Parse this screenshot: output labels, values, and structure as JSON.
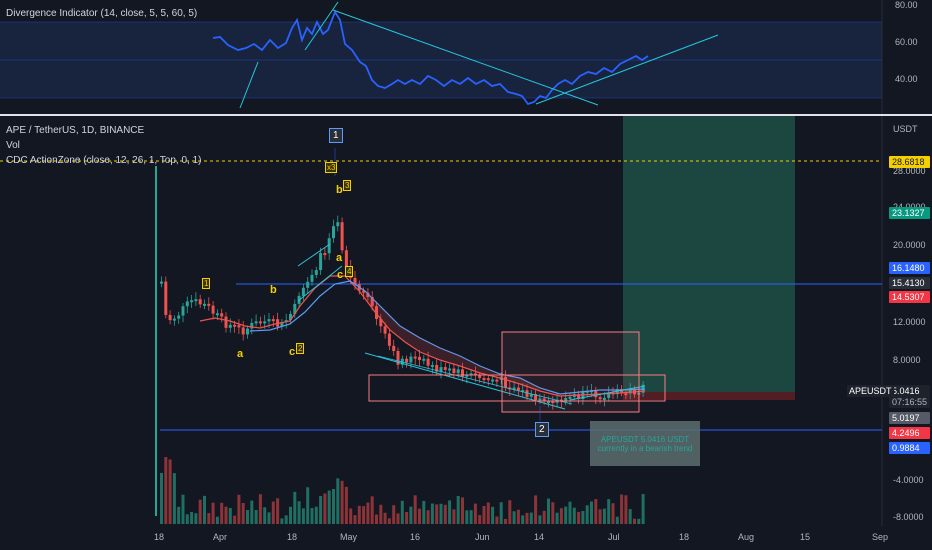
{
  "oscillator": {
    "legend": "Divergence Indicator (14, close, 5, 5, 60, 5)",
    "axis": [
      "80.00",
      "60.00",
      "40.00"
    ]
  },
  "chart": {
    "symbol_legend": "APE / TetherUS, 1D, BINANCE",
    "vol_legend": "Vol",
    "actionzone_legend": "CDC ActionZone (close, 12, 26, 1, Top, 0, 1)",
    "currency": "USDT",
    "axis": [
      "28.0000",
      "24.0000",
      "20.0000",
      "12.0000",
      "8.0000",
      "-4.0000",
      "-8.0000"
    ],
    "price_tags": [
      {
        "value": "28.6818",
        "bg": "#f5d000",
        "fg": "#131722"
      },
      {
        "value": "23.1327",
        "bg": "#089981",
        "fg": "#ffffff"
      },
      {
        "value": "16.1480",
        "bg": "#2962ff",
        "fg": "#ffffff"
      },
      {
        "value": "15.4130",
        "bg": "#2a2e39",
        "fg": "#ffffff"
      },
      {
        "value": "14.5307",
        "bg": "#f23645",
        "fg": "#ffffff"
      },
      {
        "value": "5.0416",
        "bg": "#1e222d",
        "fg": "#ffffff"
      },
      {
        "value": "07:16:55",
        "bg": "#1e222d",
        "fg": "#b2b5be"
      },
      {
        "value": "5.0197",
        "bg": "#555a66",
        "fg": "#ffffff"
      },
      {
        "value": "4.2496",
        "bg": "#f23645",
        "fg": "#ffffff"
      },
      {
        "value": "0.9884",
        "bg": "#2962ff",
        "fg": "#ffffff"
      }
    ],
    "ticker_label": "APEUSDT",
    "wave_labels": {
      "one": "1",
      "two": "2"
    },
    "annotations": {
      "a1": "a",
      "b1": "b",
      "c1": "c",
      "badge1": "1",
      "badge2": "2",
      "x3": "x3",
      "b2": "b",
      "badge3": "3",
      "c2": "c",
      "a2": "a",
      "badge4": "4"
    },
    "callout": {
      "line1": "APEUSDT 5.0416 USDT",
      "line2": "currently in a bearish trend"
    }
  },
  "time_axis": [
    "18",
    "Apr",
    "18",
    "May",
    "16",
    "Jun",
    "14",
    "Jul",
    "18",
    "Aug",
    "15",
    "Sep"
  ],
  "colors": {
    "up": "#26a69a",
    "down": "#ef5350",
    "osc_line": "#2962ff",
    "trendline": "#26c6da",
    "long_zone": "#1e4d45"
  }
}
